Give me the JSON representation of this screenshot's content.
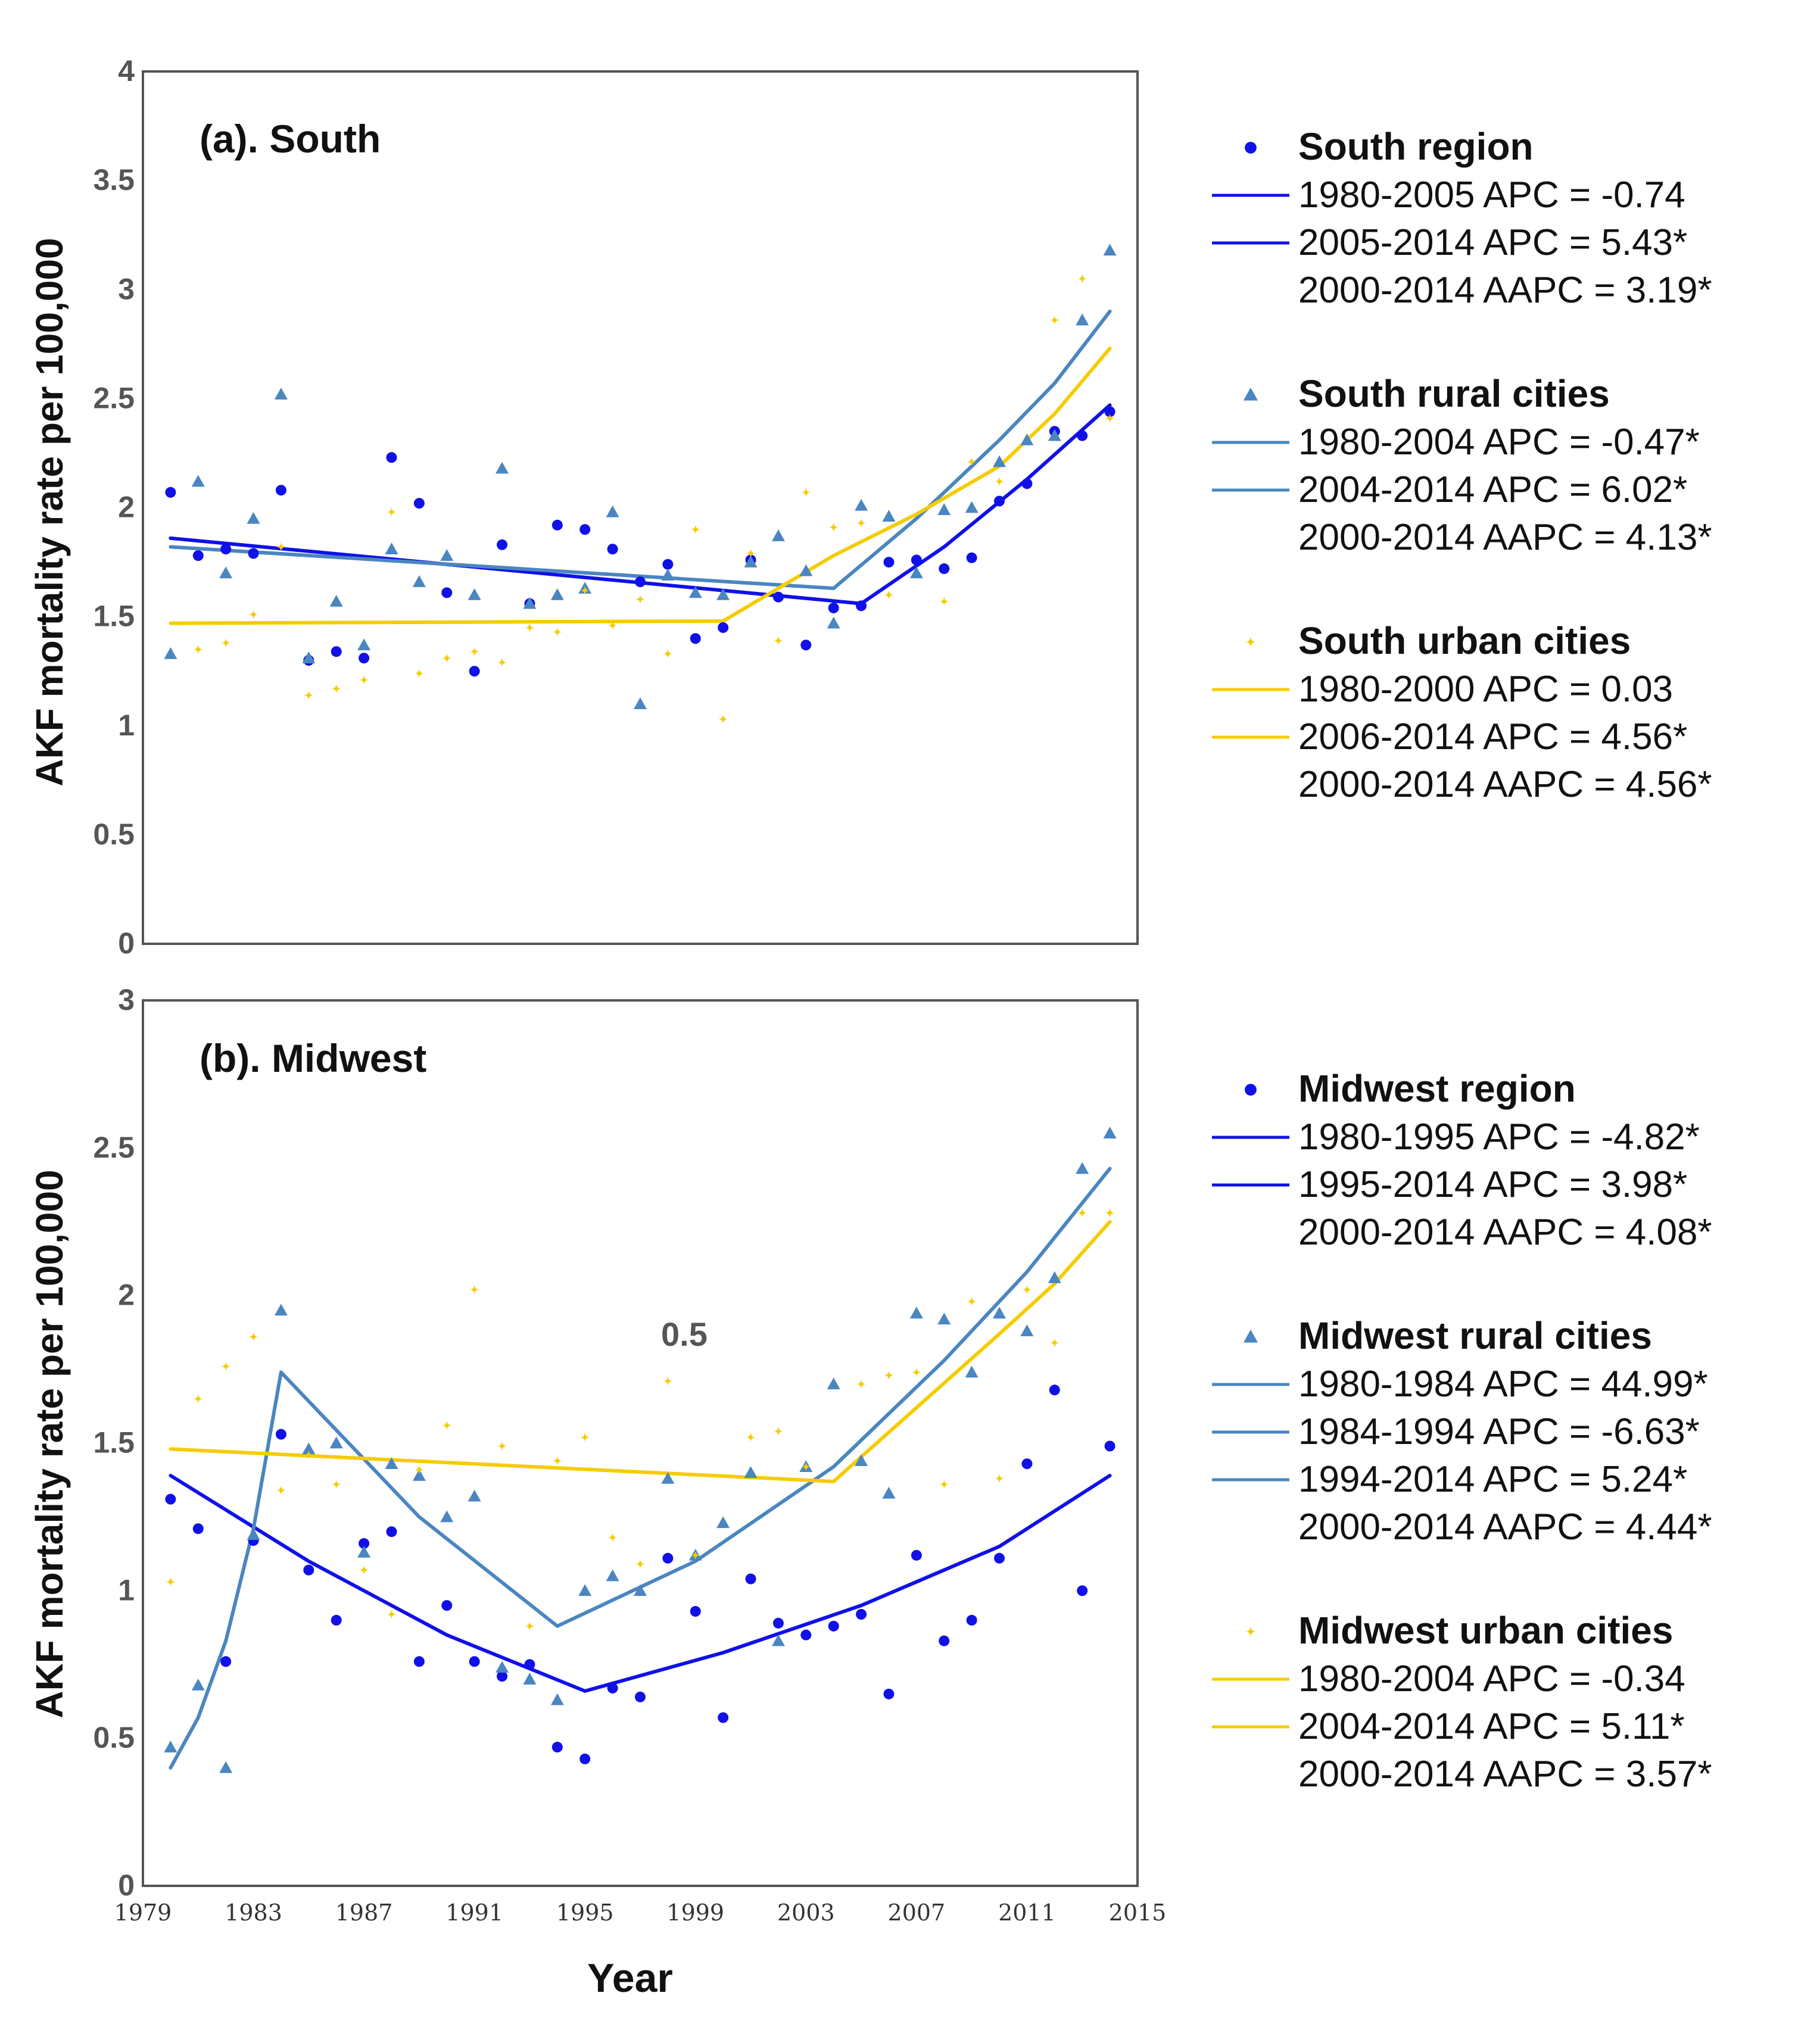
{
  "colors": {
    "region": "#1010e8",
    "rural": "#4a86c0",
    "urban": "#f5cc00",
    "frame": "#555555"
  },
  "chart_data": [
    {
      "type": "scatter",
      "title": "(a). South",
      "xlabel": "",
      "ylabel": "AKF mortality rate per 100,000",
      "xlim": [
        1979,
        2015
      ],
      "ylim": [
        0,
        4
      ],
      "yticks": [
        0,
        0.5,
        1,
        1.5,
        2,
        2.5,
        3,
        3.5,
        4
      ],
      "ytick_labels": [
        "0",
        "0.5",
        "1",
        "1.5",
        "2",
        "2.5",
        "3",
        "3.5",
        "4"
      ],
      "x": [
        1980,
        1981,
        1982,
        1983,
        1984,
        1985,
        1986,
        1987,
        1988,
        1989,
        1990,
        1991,
        1992,
        1993,
        1994,
        1995,
        1996,
        1997,
        1998,
        1999,
        2000,
        2001,
        2002,
        2003,
        2004,
        2005,
        2006,
        2007,
        2008,
        2009,
        2010,
        2011,
        2012,
        2013,
        2014
      ],
      "series": [
        {
          "name": "South region",
          "marker": "circle",
          "color_key": "region",
          "values": [
            2.07,
            1.78,
            1.81,
            1.79,
            2.08,
            1.3,
            1.34,
            1.31,
            2.23,
            2.02,
            1.61,
            1.25,
            1.83,
            1.56,
            1.92,
            1.9,
            1.81,
            1.66,
            1.74,
            1.4,
            1.45,
            1.76,
            1.59,
            1.37,
            1.54,
            1.55,
            1.75,
            1.76,
            1.72,
            1.77,
            2.03,
            2.11,
            2.35,
            2.33,
            2.44
          ]
        },
        {
          "name": "South rural cities",
          "marker": "triangle",
          "color_key": "rural",
          "values": [
            1.33,
            2.12,
            1.7,
            1.95,
            2.52,
            1.31,
            1.57,
            1.37,
            1.81,
            1.66,
            1.78,
            1.6,
            2.18,
            1.56,
            1.6,
            1.63,
            1.98,
            1.1,
            1.69,
            1.61,
            1.6,
            1.75,
            1.87,
            1.71,
            1.47,
            2.01,
            1.96,
            1.7,
            1.99,
            2.0,
            2.21,
            2.31,
            2.33,
            2.86,
            3.18
          ]
        },
        {
          "name": "South urban cities",
          "marker": "plus",
          "color_key": "urban",
          "values": [
            null,
            1.35,
            1.38,
            1.51,
            1.82,
            1.14,
            1.17,
            1.21,
            1.98,
            1.24,
            1.31,
            1.34,
            1.29,
            1.45,
            1.43,
            1.62,
            1.46,
            1.58,
            1.33,
            1.9,
            1.03,
            1.79,
            1.39,
            2.07,
            1.91,
            1.93,
            1.6,
            null,
            1.57,
            2.21,
            2.12,
            null,
            2.86,
            3.05,
            2.41
          ]
        }
      ],
      "fit_lines": [
        {
          "name": "South region fit",
          "color_key": "region",
          "x": [
            1980,
            2005,
            2008,
            2011,
            2014
          ],
          "y": [
            1.86,
            1.56,
            1.82,
            2.13,
            2.47
          ]
        },
        {
          "name": "South rural fit",
          "color_key": "rural",
          "x": [
            1980,
            2004,
            2007,
            2010,
            2012,
            2014
          ],
          "y": [
            1.82,
            1.63,
            1.95,
            2.31,
            2.57,
            2.9
          ]
        },
        {
          "name": "South urban fit",
          "color_key": "urban",
          "x": [
            1980,
            2000,
            2002,
            2004,
            2007,
            2010,
            2012,
            2014
          ],
          "y": [
            1.47,
            1.48,
            1.63,
            1.78,
            1.97,
            2.19,
            2.43,
            2.73
          ]
        }
      ],
      "legend": [
        {
          "title": "South region",
          "marker": "circle",
          "color_key": "region",
          "lines": [
            "1980-2005 APC = -0.74",
            "2005-2014 APC = 5.43*"
          ],
          "text": [
            "2000-2014 AAPC = 3.19*"
          ]
        },
        {
          "title": "South rural cities",
          "marker": "triangle",
          "color_key": "rural",
          "lines": [
            "1980-2004 APC = -0.47*",
            "2004-2014 APC = 6.02*"
          ],
          "text": [
            "2000-2014 AAPC = 4.13*"
          ]
        },
        {
          "title": "South urban cities",
          "marker": "plus",
          "color_key": "urban",
          "lines": [
            "1980-2000 APC = 0.03",
            "2006-2014 APC = 4.56*"
          ],
          "text": [
            "2000-2014 AAPC = 4.56*"
          ]
        }
      ]
    },
    {
      "type": "scatter",
      "title": "(b). Midwest",
      "xlabel": "Year",
      "ylabel": "AKF mortality rate per 100,000",
      "xlim": [
        1979,
        2015
      ],
      "ylim": [
        0,
        3
      ],
      "xticks": [
        1979,
        1983,
        1987,
        1991,
        1995,
        1999,
        2003,
        2007,
        2011,
        2015
      ],
      "xtick_labels": [
        "1979",
        "1983",
        "1987",
        "1991",
        "1995",
        "1999",
        "2003",
        "2007",
        "2011",
        "2015"
      ],
      "yticks": [
        0,
        0.5,
        1,
        1.5,
        2,
        2.5,
        3
      ],
      "ytick_labels": [
        "0",
        "0.5",
        "1",
        "1.5",
        "2",
        "2.5",
        "3"
      ],
      "annotation": {
        "text": "0.5",
        "x": 1998.6,
        "y": 1.96
      },
      "x": [
        1980,
        1981,
        1982,
        1983,
        1984,
        1985,
        1986,
        1987,
        1988,
        1989,
        1990,
        1991,
        1992,
        1993,
        1994,
        1995,
        1996,
        1997,
        1998,
        1999,
        2000,
        2001,
        2002,
        2003,
        2004,
        2005,
        2006,
        2007,
        2008,
        2009,
        2010,
        2011,
        2012,
        2013,
        2014
      ],
      "series": [
        {
          "name": "Midwest region",
          "marker": "circle",
          "color_key": "region",
          "values": [
            1.31,
            1.21,
            0.76,
            1.17,
            1.53,
            1.07,
            0.9,
            1.16,
            1.2,
            0.76,
            0.95,
            0.76,
            0.71,
            0.75,
            0.47,
            0.43,
            0.67,
            0.64,
            1.11,
            0.93,
            0.57,
            1.04,
            0.89,
            0.85,
            0.88,
            0.92,
            0.65,
            1.12,
            0.83,
            0.9,
            1.11,
            1.43,
            1.68,
            1.0,
            1.49
          ]
        },
        {
          "name": "Midwest rural cities",
          "marker": "triangle",
          "color_key": "rural",
          "values": [
            0.47,
            0.68,
            0.4,
            1.19,
            1.95,
            1.48,
            1.5,
            1.13,
            1.43,
            1.39,
            1.25,
            1.32,
            0.74,
            0.7,
            0.63,
            1.0,
            1.05,
            1.0,
            1.38,
            1.12,
            1.23,
            1.4,
            0.83,
            1.42,
            1.7,
            1.44,
            1.33,
            1.94,
            1.92,
            1.74,
            1.94,
            1.88,
            2.06,
            2.43,
            2.55
          ]
        },
        {
          "name": "Midwest urban cities",
          "marker": "plus",
          "color_key": "urban",
          "values": [
            1.03,
            1.65,
            1.76,
            1.86,
            1.34,
            1.46,
            1.36,
            1.07,
            0.92,
            1.41,
            1.56,
            2.02,
            1.49,
            0.88,
            1.44,
            1.52,
            1.18,
            1.09,
            1.71,
            1.12,
            null,
            1.52,
            1.54,
            1.42,
            null,
            1.7,
            1.73,
            1.74,
            1.36,
            1.98,
            1.38,
            2.02,
            1.84,
            2.28,
            2.28
          ]
        }
      ],
      "fit_lines": [
        {
          "name": "Midwest region fit",
          "color_key": "region",
          "x": [
            1980,
            1985,
            1990,
            1995,
            2000,
            2005,
            2010,
            2014
          ],
          "y": [
            1.39,
            1.1,
            0.85,
            0.66,
            0.79,
            0.95,
            1.15,
            1.39
          ]
        },
        {
          "name": "Midwest rural fit",
          "color_key": "rural",
          "x": [
            1980,
            1981,
            1982,
            1983,
            1984,
            1989,
            1994,
            1999,
            2004,
            2008,
            2011,
            2014
          ],
          "y": [
            0.4,
            0.57,
            0.83,
            1.21,
            1.74,
            1.25,
            0.88,
            1.1,
            1.42,
            1.78,
            2.08,
            2.43
          ]
        },
        {
          "name": "Midwest urban fit",
          "color_key": "urban",
          "x": [
            1980,
            2004,
            2007,
            2010,
            2012,
            2014
          ],
          "y": [
            1.48,
            1.37,
            1.62,
            1.87,
            2.04,
            2.25
          ]
        }
      ],
      "legend": [
        {
          "title": "Midwest region",
          "marker": "circle",
          "color_key": "region",
          "lines": [
            "1980-1995 APC = -4.82*",
            "1995-2014 APC = 3.98*"
          ],
          "text": [
            "2000-2014 AAPC = 4.08*"
          ]
        },
        {
          "title": "Midwest rural cities",
          "marker": "triangle",
          "color_key": "rural",
          "lines": [
            "1980-1984 APC = 44.99*",
            "1984-1994 APC = -6.63*",
            "1994-2014 APC = 5.24*"
          ],
          "text": [
            "2000-2014 AAPC = 4.44*"
          ]
        },
        {
          "title": "Midwest urban cities",
          "marker": "plus",
          "color_key": "urban",
          "lines": [
            "1980-2004 APC = -0.34",
            "2004-2014 APC = 5.11*"
          ],
          "text": [
            "2000-2014 AAPC = 3.57*"
          ]
        }
      ]
    }
  ]
}
